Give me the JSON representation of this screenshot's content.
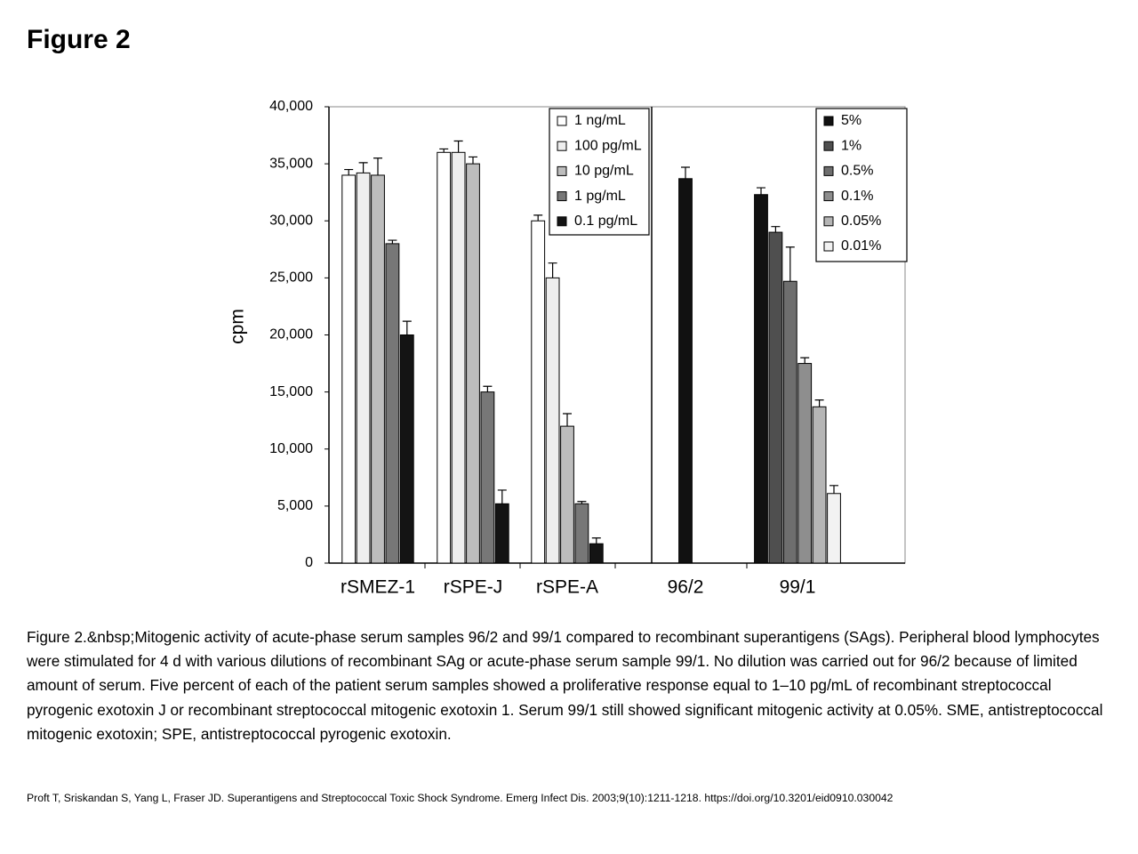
{
  "header": {
    "title": "Figure 2"
  },
  "chart_data": {
    "type": "bar",
    "y_label": "cpm",
    "categories": [
      "rSMEZ-1",
      "rSPE-J",
      "rSPE-A",
      "96/2",
      "99/1"
    ],
    "ylim": [
      0,
      40000
    ],
    "yticks": [
      0,
      {
        "value": 5000,
        "label": "5,000"
      },
      {
        "value": 10000,
        "label": "10,000"
      },
      {
        "value": 15000,
        "label": "15,000"
      },
      {
        "value": 20000,
        "label": "20,000"
      },
      {
        "value": 25000,
        "label": "25,000"
      },
      {
        "value": 30000,
        "label": "30,000"
      },
      {
        "value": 35000,
        "label": "35,000"
      },
      {
        "value": 40000,
        "label": "40,000"
      }
    ],
    "grid": false,
    "series": [
      {
        "name": "1 ng/mL",
        "color": "#ffffff",
        "values": [
          34000,
          36000,
          30000,
          null,
          null
        ],
        "errors": [
          500,
          300,
          500,
          null,
          null
        ]
      },
      {
        "name": "100 pg/mL",
        "color": "#eeeeee",
        "values": [
          34200,
          36000,
          25000,
          null,
          null
        ],
        "errors": [
          900,
          1000,
          1300,
          null,
          null
        ]
      },
      {
        "name": "10 pg/mL",
        "color": "#bdbdbd",
        "values": [
          34000,
          35000,
          12000,
          null,
          null
        ],
        "errors": [
          1500,
          600,
          1100,
          null,
          null
        ]
      },
      {
        "name": "1 pg/mL",
        "color": "#777777",
        "values": [
          28000,
          15000,
          5200,
          null,
          null
        ],
        "errors": [
          300,
          500,
          200,
          null,
          null
        ]
      },
      {
        "name": "0.1 pg/mL",
        "color": "#141414",
        "values": [
          20000,
          5200,
          1700,
          null,
          null
        ],
        "errors": [
          1200,
          1200,
          500,
          null,
          null
        ]
      },
      {
        "name": "5%",
        "color": "#111111",
        "values": [
          null,
          null,
          null,
          33700,
          32300
        ],
        "errors": [
          null,
          null,
          null,
          1000,
          600
        ]
      },
      {
        "name": "1%",
        "color": "#4f4f4f",
        "values": [
          null,
          null,
          null,
          null,
          29000
        ],
        "errors": [
          null,
          null,
          null,
          null,
          500
        ]
      },
      {
        "name": "0.5%",
        "color": "#6e6e6e",
        "values": [
          null,
          null,
          null,
          null,
          24700
        ],
        "errors": [
          null,
          null,
          null,
          null,
          3000
        ]
      },
      {
        "name": "0.1%",
        "color": "#8e8e8e",
        "values": [
          null,
          null,
          null,
          null,
          17500
        ],
        "errors": [
          null,
          null,
          null,
          null,
          500
        ]
      },
      {
        "name": "0.05%",
        "color": "#b5b5b5",
        "values": [
          null,
          null,
          null,
          null,
          13700
        ],
        "errors": [
          null,
          null,
          null,
          null,
          600
        ]
      },
      {
        "name": "0.01%",
        "color": "#f2f2f2",
        "values": [
          null,
          null,
          null,
          null,
          6100
        ],
        "errors": [
          null,
          null,
          null,
          null,
          700
        ]
      }
    ]
  },
  "caption": "Figure 2.&nbsp;Mitogenic activity of acute-phase serum samples 96/2 and 99/1 compared to recombinant superantigens (SAgs). Peripheral blood lymphocytes were stimulated for 4 d with various dilutions of recombinant SAg or acute-phase serum sample 99/1. No dilution was carried out for 96/2 because of limited amount of serum. Five percent of each of the patient serum samples showed a proliferative response equal to 1–10 pg/mL of recombinant streptococcal pyrogenic exotoxin J or recombinant streptococcal mitogenic exotoxin 1. Serum 99/1 still showed significant mitogenic activity at 0.05%. SME, antistreptococcal mitogenic exotoxin; SPE, antistreptococcal pyrogenic exotoxin.",
  "citation": "Proft T, Sriskandan S, Yang L, Fraser JD. Superantigens and Streptococcal Toxic Shock Syndrome. Emerg Infect Dis. 2003;9(10):1211-1218. https://doi.org/10.3201/eid0910.030042"
}
